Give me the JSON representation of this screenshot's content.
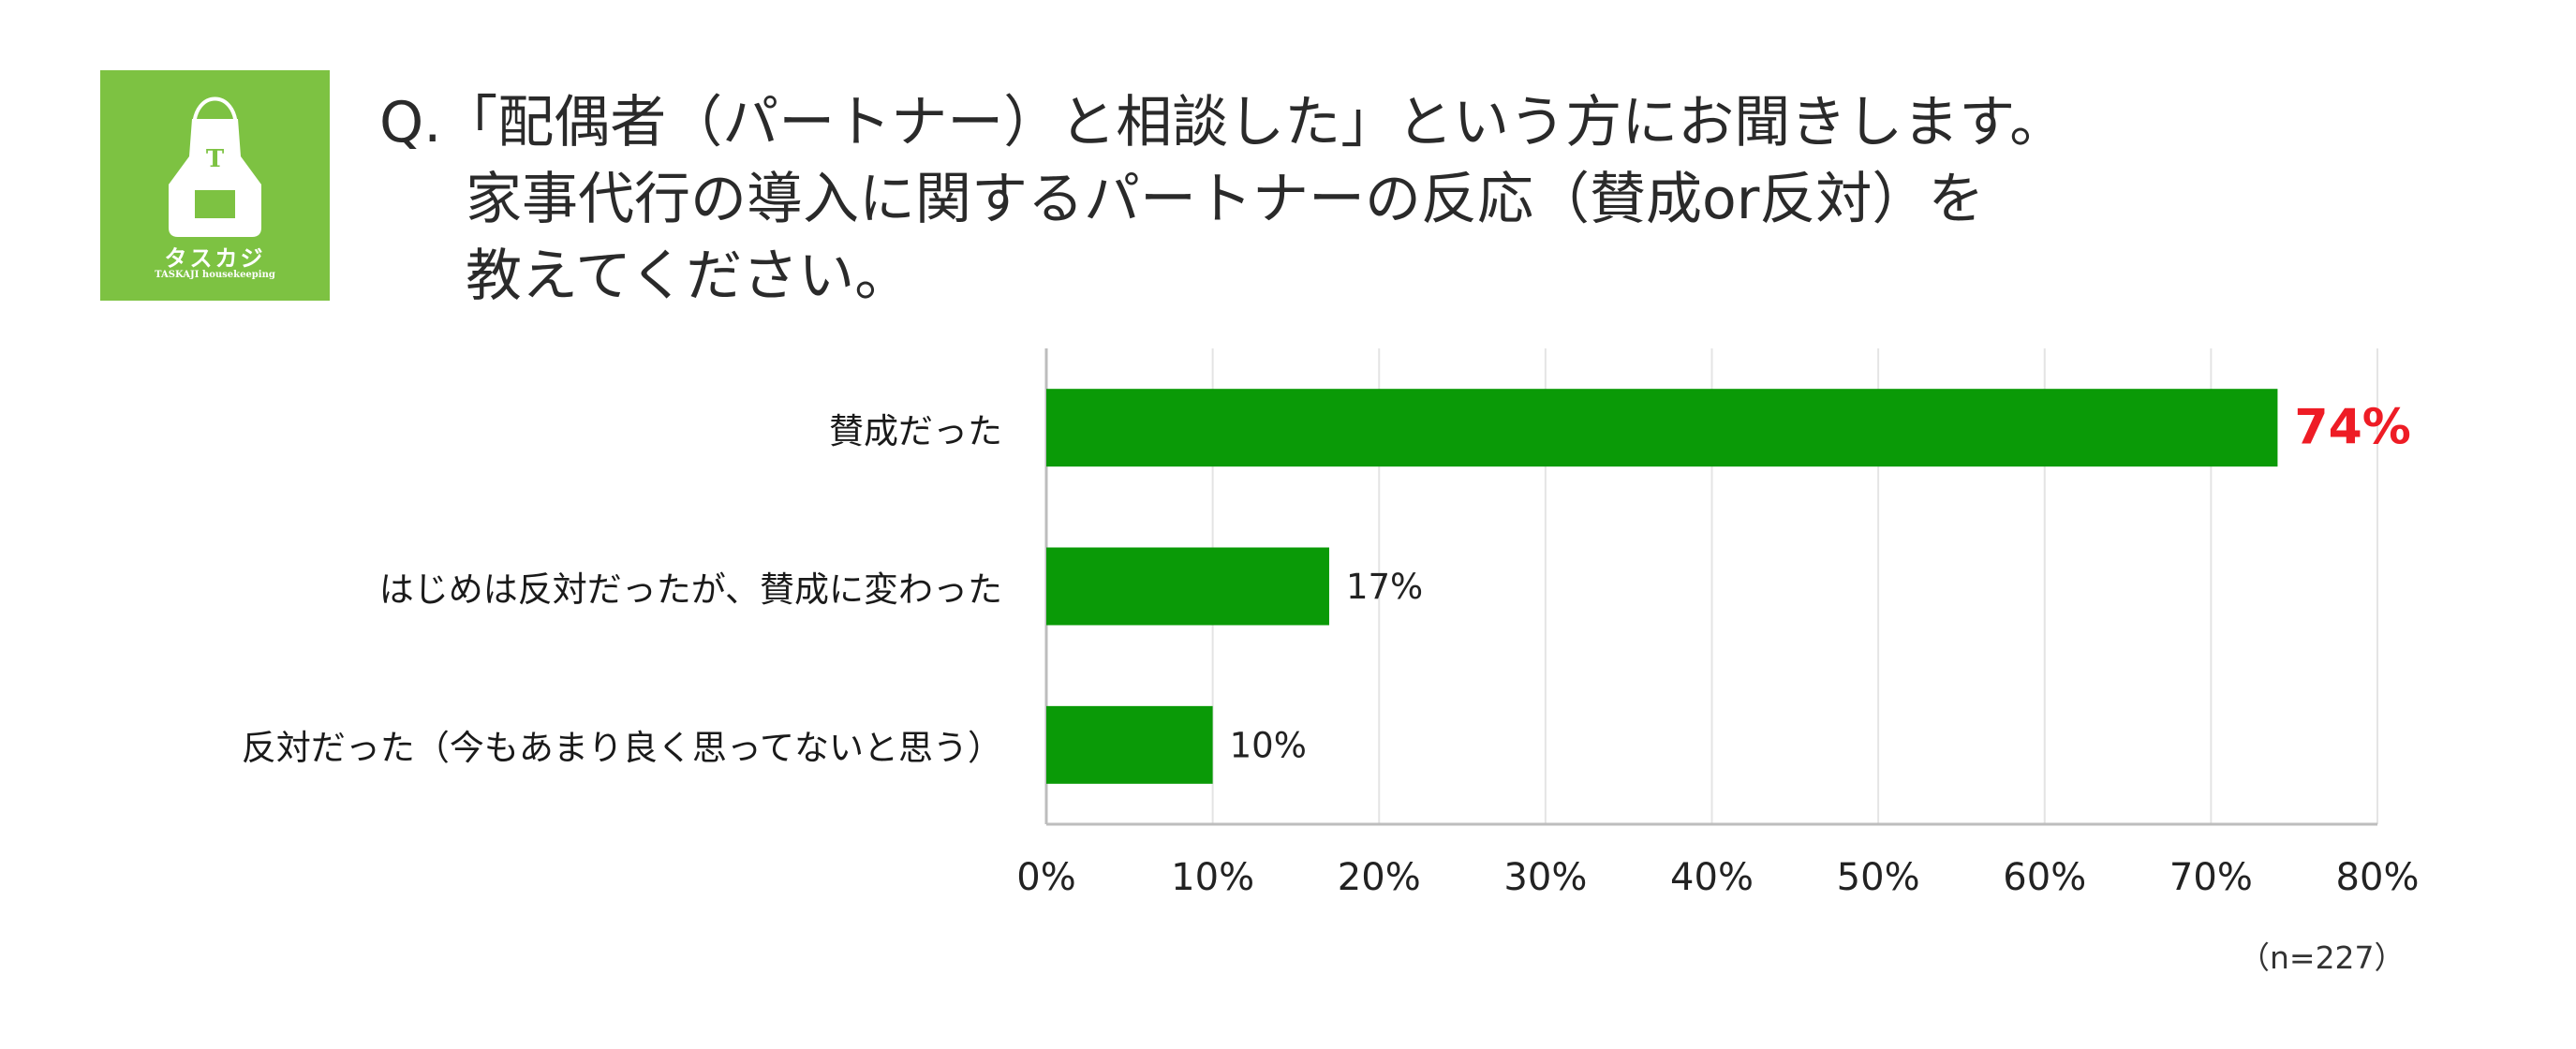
{
  "brand": {
    "name_jp": "タスカジ",
    "name_en": "TASKAJI housekeeping",
    "logo_initial": "T"
  },
  "question": {
    "line1": "Q.「配偶者（パートナー）と相談した」という方にお聞きします。",
    "line2": "家事代行の導入に関するパートナーの反応（賛成or反対）を",
    "line3": "教えてください。"
  },
  "colors": {
    "bar": "#0a9a07",
    "highlight": "#ee1c25",
    "logo_bg": "#7dc242",
    "grid": "#e4e4e4",
    "axis": "#bdbdbd"
  },
  "chart_data": {
    "type": "bar",
    "orientation": "horizontal",
    "title": "",
    "categories": [
      "賛成だった",
      "はじめは反対だったが、賛成に変わった",
      "反対だった（今もあまり良く思ってないと思う）"
    ],
    "values": [
      74,
      17,
      10
    ],
    "value_labels": [
      "74%",
      "17%",
      "10%"
    ],
    "highlight_index": 0,
    "xlim": [
      0,
      80
    ],
    "xticks": [
      0,
      10,
      20,
      30,
      40,
      50,
      60,
      70,
      80
    ],
    "xtick_labels": [
      "0%",
      "10%",
      "20%",
      "30%",
      "40%",
      "50%",
      "60%",
      "70%",
      "80%"
    ],
    "grid": true
  },
  "sample_size": "（n=227）"
}
